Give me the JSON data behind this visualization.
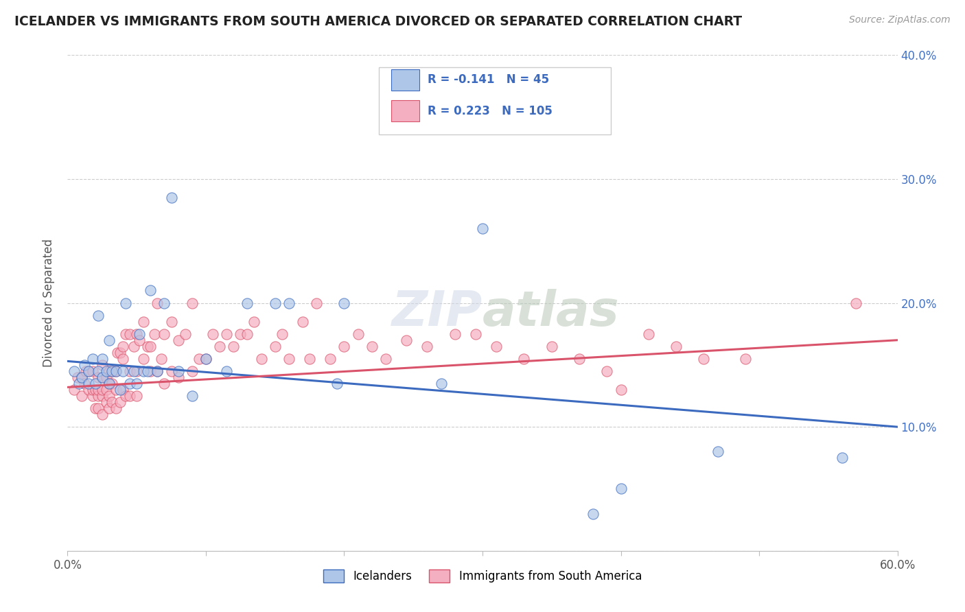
{
  "title": "ICELANDER VS IMMIGRANTS FROM SOUTH AMERICA DIVORCED OR SEPARATED CORRELATION CHART",
  "source": "Source: ZipAtlas.com",
  "ylabel": "Divorced or Separated",
  "xlim": [
    0.0,
    0.6
  ],
  "ylim": [
    0.0,
    0.4
  ],
  "xticks": [
    0.0,
    0.1,
    0.2,
    0.3,
    0.4,
    0.5,
    0.6
  ],
  "yticks": [
    0.0,
    0.1,
    0.2,
    0.3,
    0.4
  ],
  "blue_R": -0.141,
  "blue_N": 45,
  "pink_R": 0.223,
  "pink_N": 105,
  "blue_color": "#aec6e8",
  "pink_color": "#f4afc0",
  "blue_line_color": "#3b6abf",
  "pink_line_color": "#d9536a",
  "background_color": "#ffffff",
  "grid_color": "#cccccc",
  "blue_line_start_y": 0.153,
  "blue_line_end_y": 0.1,
  "pink_line_start_y": 0.132,
  "pink_line_end_y": 0.17,
  "blue_scatter_x": [
    0.005,
    0.008,
    0.01,
    0.012,
    0.015,
    0.015,
    0.018,
    0.02,
    0.022,
    0.022,
    0.025,
    0.025,
    0.028,
    0.03,
    0.03,
    0.032,
    0.035,
    0.038,
    0.04,
    0.042,
    0.045,
    0.048,
    0.05,
    0.052,
    0.055,
    0.058,
    0.06,
    0.065,
    0.07,
    0.075,
    0.08,
    0.09,
    0.1,
    0.115,
    0.13,
    0.15,
    0.16,
    0.195,
    0.2,
    0.27,
    0.3,
    0.38,
    0.4,
    0.47,
    0.56
  ],
  "blue_scatter_y": [
    0.145,
    0.135,
    0.14,
    0.15,
    0.135,
    0.145,
    0.155,
    0.135,
    0.145,
    0.19,
    0.14,
    0.155,
    0.145,
    0.135,
    0.17,
    0.145,
    0.145,
    0.13,
    0.145,
    0.2,
    0.135,
    0.145,
    0.135,
    0.175,
    0.145,
    0.145,
    0.21,
    0.145,
    0.2,
    0.285,
    0.145,
    0.125,
    0.155,
    0.145,
    0.2,
    0.2,
    0.2,
    0.135,
    0.2,
    0.135,
    0.26,
    0.03,
    0.05,
    0.08,
    0.075
  ],
  "pink_scatter_x": [
    0.005,
    0.007,
    0.01,
    0.01,
    0.012,
    0.013,
    0.015,
    0.015,
    0.018,
    0.018,
    0.018,
    0.02,
    0.02,
    0.022,
    0.022,
    0.022,
    0.022,
    0.025,
    0.025,
    0.025,
    0.025,
    0.025,
    0.028,
    0.028,
    0.028,
    0.03,
    0.03,
    0.03,
    0.03,
    0.032,
    0.032,
    0.033,
    0.035,
    0.035,
    0.035,
    0.036,
    0.038,
    0.038,
    0.04,
    0.04,
    0.04,
    0.042,
    0.042,
    0.045,
    0.045,
    0.045,
    0.048,
    0.05,
    0.05,
    0.05,
    0.052,
    0.055,
    0.055,
    0.058,
    0.06,
    0.06,
    0.063,
    0.065,
    0.065,
    0.068,
    0.07,
    0.07,
    0.075,
    0.075,
    0.08,
    0.08,
    0.085,
    0.09,
    0.09,
    0.095,
    0.1,
    0.105,
    0.11,
    0.115,
    0.12,
    0.125,
    0.13,
    0.135,
    0.14,
    0.15,
    0.155,
    0.16,
    0.17,
    0.175,
    0.18,
    0.19,
    0.2,
    0.21,
    0.22,
    0.23,
    0.245,
    0.26,
    0.28,
    0.295,
    0.31,
    0.33,
    0.35,
    0.37,
    0.39,
    0.4,
    0.42,
    0.44,
    0.46,
    0.49,
    0.57
  ],
  "pink_scatter_y": [
    0.13,
    0.14,
    0.125,
    0.14,
    0.135,
    0.145,
    0.13,
    0.145,
    0.125,
    0.13,
    0.145,
    0.115,
    0.13,
    0.115,
    0.125,
    0.13,
    0.14,
    0.11,
    0.125,
    0.13,
    0.14,
    0.15,
    0.12,
    0.13,
    0.14,
    0.115,
    0.125,
    0.135,
    0.145,
    0.12,
    0.135,
    0.145,
    0.115,
    0.13,
    0.145,
    0.16,
    0.12,
    0.16,
    0.13,
    0.155,
    0.165,
    0.125,
    0.175,
    0.125,
    0.145,
    0.175,
    0.165,
    0.125,
    0.145,
    0.175,
    0.17,
    0.155,
    0.185,
    0.165,
    0.145,
    0.165,
    0.175,
    0.145,
    0.2,
    0.155,
    0.135,
    0.175,
    0.145,
    0.185,
    0.14,
    0.17,
    0.175,
    0.145,
    0.2,
    0.155,
    0.155,
    0.175,
    0.165,
    0.175,
    0.165,
    0.175,
    0.175,
    0.185,
    0.155,
    0.165,
    0.175,
    0.155,
    0.185,
    0.155,
    0.2,
    0.155,
    0.165,
    0.175,
    0.165,
    0.155,
    0.17,
    0.165,
    0.175,
    0.175,
    0.165,
    0.155,
    0.165,
    0.155,
    0.145,
    0.13,
    0.175,
    0.165,
    0.155,
    0.155,
    0.2
  ]
}
